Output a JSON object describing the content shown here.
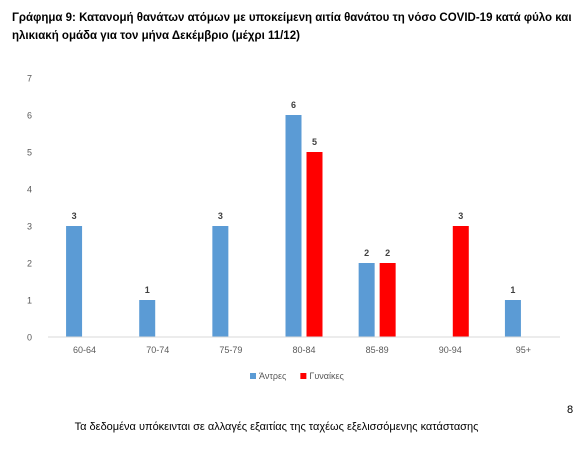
{
  "header": {
    "title": "Γράφημα 9: Κατανομή θανάτων ατόμων με υποκείμενη αιτία θανάτου τη νόσο COVID-19 κατά φύλο και ηλικιακή ομάδα για τον μήνα Δεκέμβριο (μέχρι 11/12)"
  },
  "chart_data": {
    "type": "bar",
    "categories": [
      "60-64",
      "70-74",
      "75-79",
      "80-84",
      "85-89",
      "90-94",
      "95+"
    ],
    "series": [
      {
        "name": "Άντρες",
        "color": "#5b9bd5",
        "values": [
          3,
          1,
          3,
          6,
          2,
          0,
          1
        ]
      },
      {
        "name": "Γυναίκες",
        "color": "#ff0000",
        "values": [
          0,
          0,
          0,
          5,
          2,
          3,
          0
        ]
      }
    ],
    "ylim": [
      0,
      7
    ],
    "yticks": [
      0,
      1,
      2,
      3,
      4,
      5,
      6,
      7
    ],
    "grid": false,
    "legend": "bottom-center",
    "data_labels": true
  },
  "footer": {
    "note": "Τα δεδομένα υπόκεινται σε αλλαγές εξαιτίας της ταχέως εξελισσόμενης κατάστασης",
    "page_number": "8"
  }
}
